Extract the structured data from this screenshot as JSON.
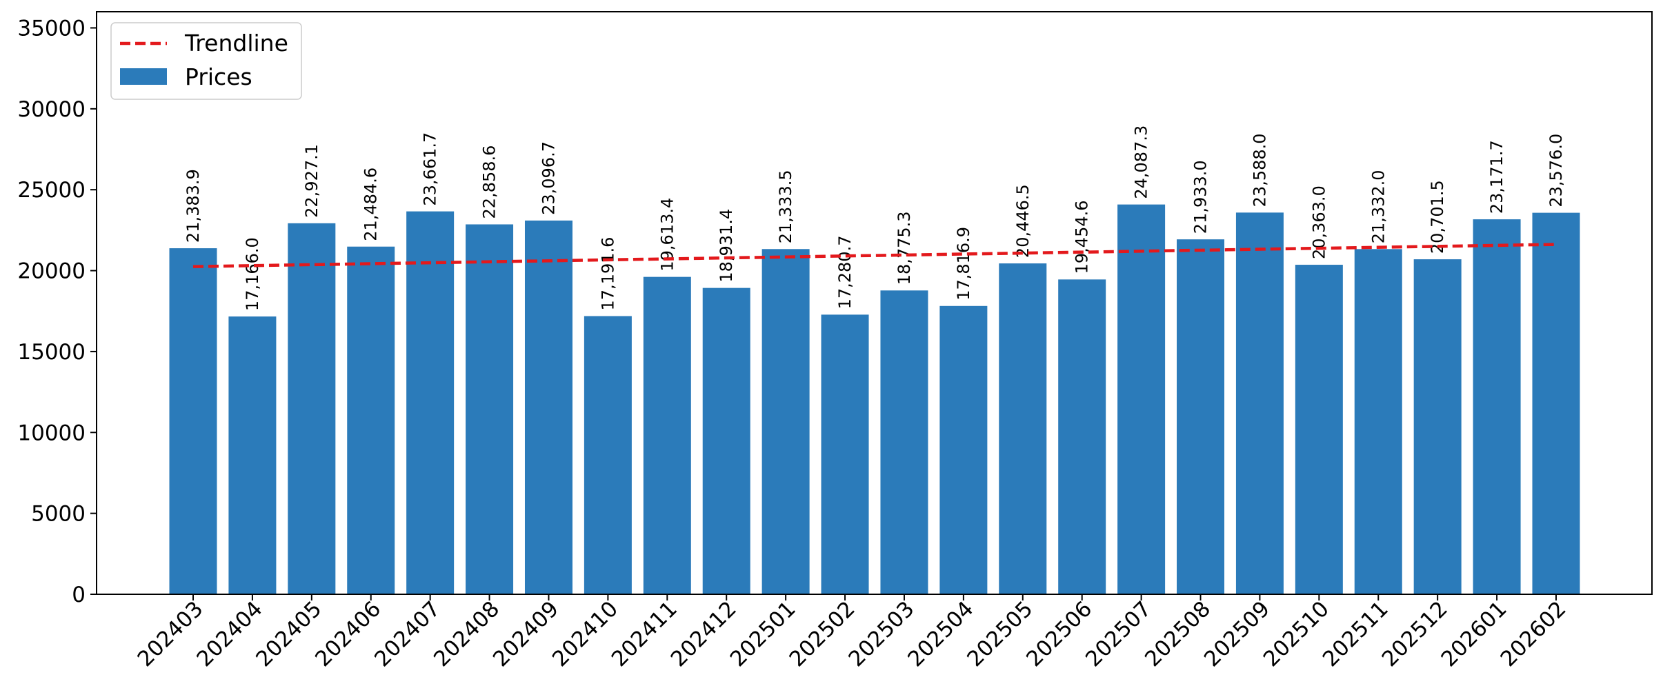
{
  "chart_data": {
    "type": "bar",
    "categories": [
      "202403",
      "202404",
      "202405",
      "202406",
      "202407",
      "202408",
      "202409",
      "202410",
      "202411",
      "202412",
      "202501",
      "202502",
      "202503",
      "202504",
      "202505",
      "202506",
      "202507",
      "202508",
      "202509",
      "202510",
      "202511",
      "202512",
      "202601",
      "202602"
    ],
    "series": [
      {
        "name": "Prices",
        "values": [
          21383.9,
          17166.0,
          22927.1,
          21484.6,
          23661.7,
          22858.6,
          23096.7,
          17191.6,
          19613.4,
          18931.4,
          21333.5,
          17280.7,
          18775.3,
          17816.9,
          20446.5,
          19454.6,
          24087.3,
          21933.0,
          23588.0,
          20363.0,
          21332.0,
          20701.5,
          23171.7,
          23576.0
        ],
        "value_labels": [
          "21,383.9",
          "17,166.0",
          "22,927.1",
          "21,484.6",
          "23,661.7",
          "22,858.6",
          "23,096.7",
          "17,191.6",
          "19,613.4",
          "18,931.4",
          "21,333.5",
          "17,280.7",
          "18,775.3",
          "17,816.9",
          "20,446.5",
          "19,454.6",
          "24,087.3",
          "21,933.0",
          "23,588.0",
          "20,363.0",
          "21,332.0",
          "20,701.5",
          "23,171.7",
          "23,576.0"
        ],
        "color": "#2b7bba"
      },
      {
        "name": "Trendline",
        "type": "line",
        "style": "dashed",
        "color": "#e3191c",
        "start": 20250,
        "end": 21620
      }
    ],
    "yticks": [
      "0",
      "5000",
      "10000",
      "15000",
      "20000",
      "25000",
      "30000",
      "35000"
    ],
    "ylim": [
      0,
      36000
    ],
    "legend": "top-left",
    "grid": false
  }
}
